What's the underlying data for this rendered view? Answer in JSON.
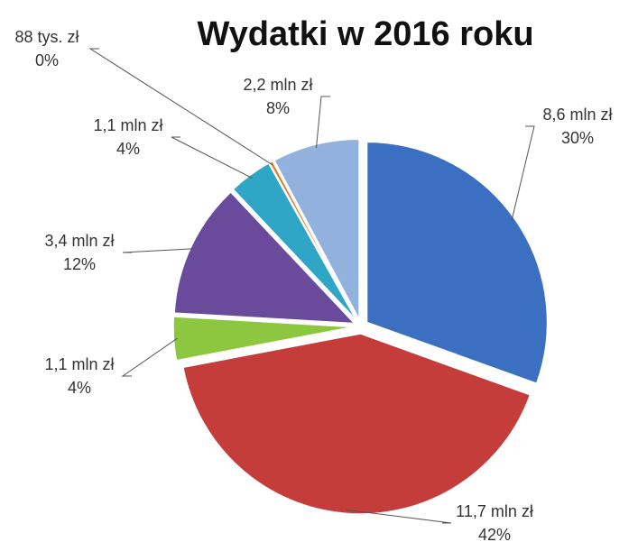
{
  "chart_data": {
    "type": "pie",
    "title": "Wydatki w 2016 roku",
    "values": [
      8600000,
      11700000,
      1100000,
      3400000,
      1100000,
      88000,
      2200000
    ],
    "value_labels": [
      "8,6 mln zł",
      "11,7 mln zł",
      "1,1 mln zł",
      "3,4 mln zł",
      "1,1 mln zł",
      "88 tys. zł",
      "2,2 mln zł"
    ],
    "percent_labels": [
      "30%",
      "42%",
      "4%",
      "12%",
      "4%",
      "0%",
      "8%"
    ],
    "colors": [
      "#3b6fc2",
      "#c43d3a",
      "#8dc63f",
      "#6a4b9b",
      "#2fa6c6",
      "#e07b28",
      "#93b1dd"
    ]
  }
}
